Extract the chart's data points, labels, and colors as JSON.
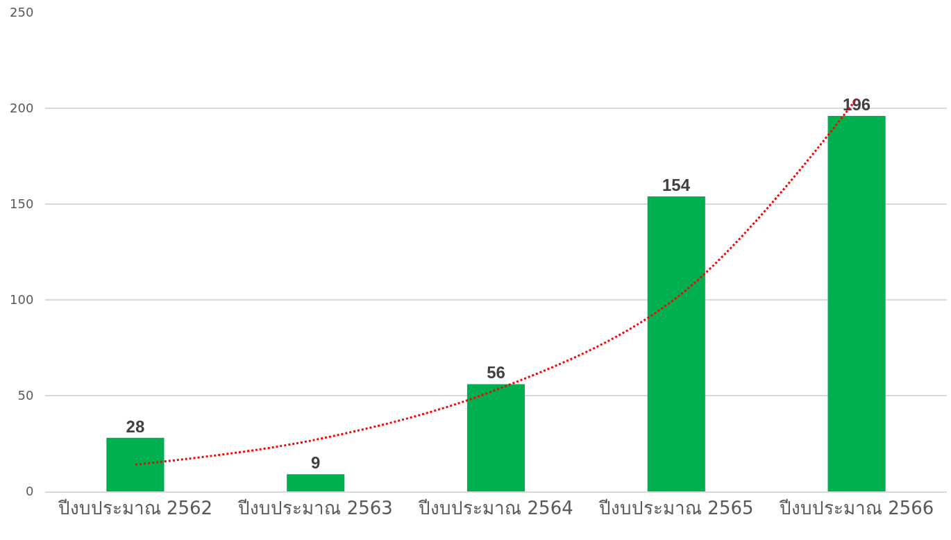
{
  "chart_data": {
    "type": "bar",
    "categories": [
      "ปีงบประมาณ 2562",
      "ปีงบประมาณ 2563",
      "ปีงบประมาณ 2564",
      "ปีงบประมาณ 2565",
      "ปีงบประมาณ 2566"
    ],
    "series": [
      {
        "color": "#00b050",
        "values": [
          28,
          9,
          56,
          154,
          196
        ],
        "value_labels": [
          "28",
          "9",
          "56",
          "154",
          "196"
        ]
      },
      {
        "type": "line",
        "color": "#ff0000",
        "line_style": "dotted",
        "marker": "none",
        "x": [
          "ปีงบประมาณ 2562",
          "ปีงบประมาณ 2563",
          "ปีงบประมาณ 2564",
          "ปีงบประมาณ 2565",
          "ปีงบประมาณ 2566"
        ],
        "values": [
          14,
          27,
          53,
          101,
          205
        ]
      }
    ],
    "ylim": [
      0,
      250
    ],
    "yticks": [
      0,
      50,
      100,
      150,
      200,
      250
    ],
    "grid": "y",
    "legend": false
  }
}
